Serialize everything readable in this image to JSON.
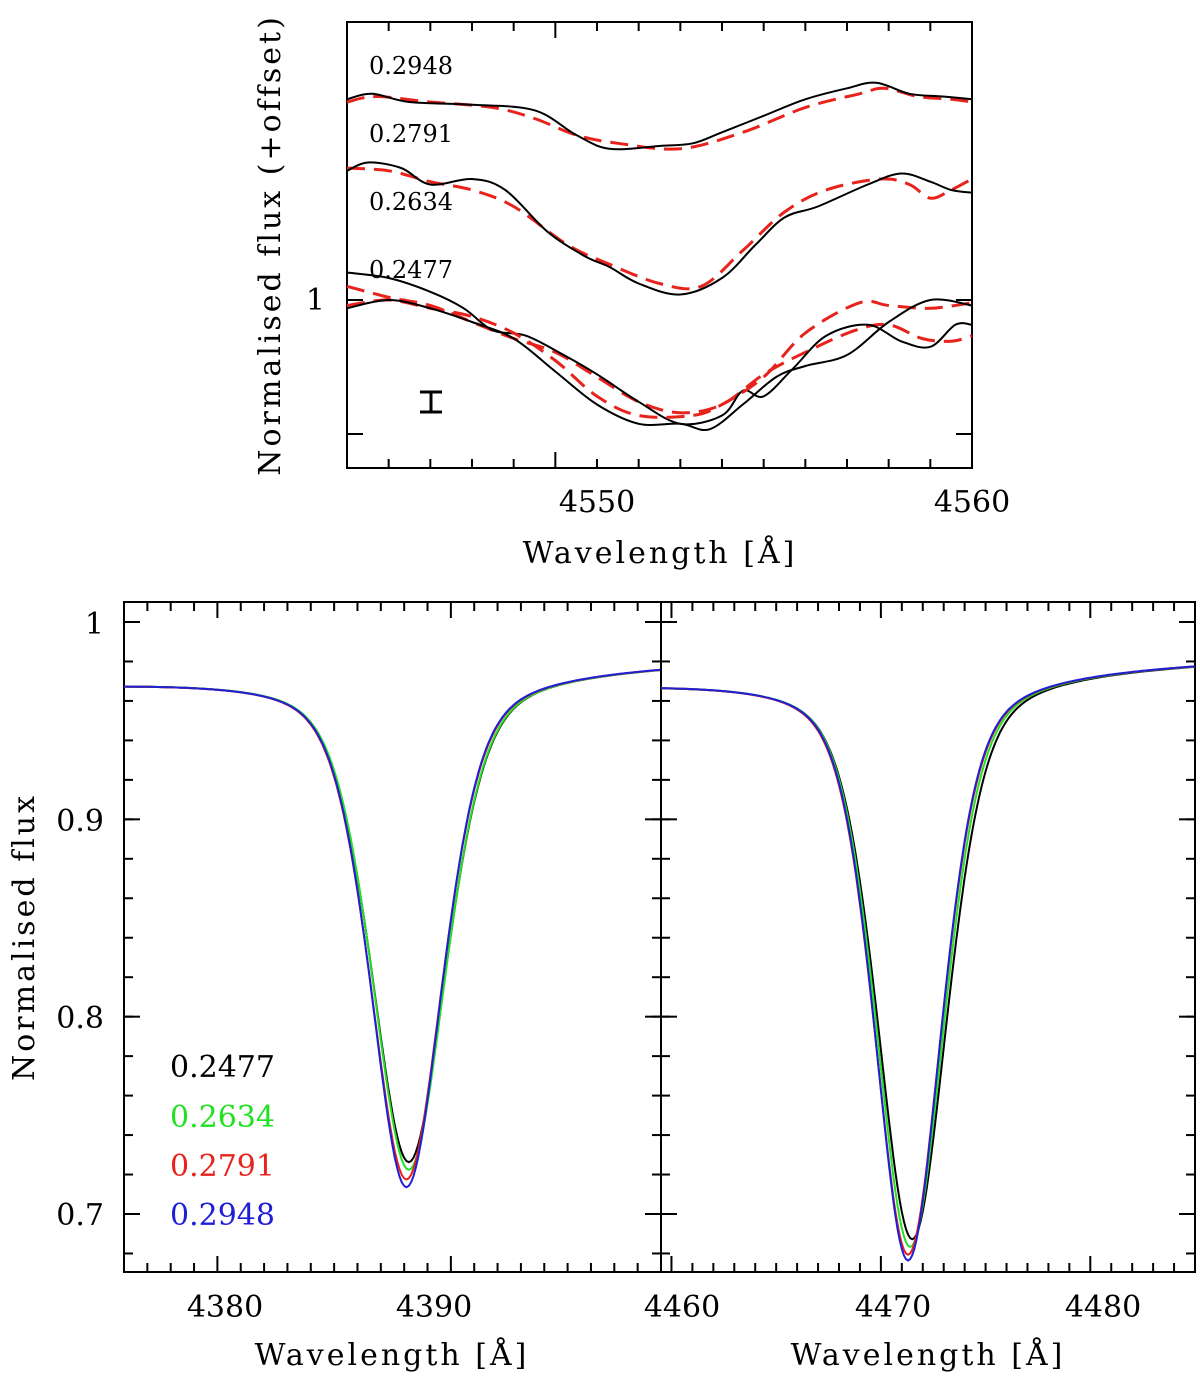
{
  "chart_data": [
    {
      "type": "line",
      "panel": "top",
      "xlabel": "Wavelength [Å]",
      "ylabel": "Normalised flux (+offset)",
      "xlim": [
        4545,
        4560
      ],
      "x_ticks": [
        "4550",
        "4560"
      ],
      "y_ticks": [
        "1"
      ],
      "error_bar_shown": true,
      "colors": {
        "observed": "#000000",
        "model": "#e8231c"
      },
      "line_styles": {
        "observed": "solid",
        "model": "dashed"
      },
      "series": [
        {
          "label": "0.2948",
          "offset": 0.75,
          "observed": [
            [
              4545,
              0.98
            ],
            [
              4545.6,
              1.0
            ],
            [
              4546.5,
              0.97
            ],
            [
              4548,
              0.96
            ],
            [
              4549.5,
              0.94
            ],
            [
              4550.5,
              0.85
            ],
            [
              4551.3,
              0.8
            ],
            [
              4552.5,
              0.81
            ],
            [
              4553.3,
              0.82
            ],
            [
              4554,
              0.86
            ],
            [
              4555,
              0.92
            ],
            [
              4556,
              0.98
            ],
            [
              4557,
              1.02
            ],
            [
              4557.7,
              1.04
            ],
            [
              4558.5,
              1.0
            ],
            [
              4559.3,
              0.99
            ],
            [
              4560,
              0.98
            ]
          ],
          "model": [
            [
              4545,
              0.97
            ],
            [
              4545.7,
              0.99
            ],
            [
              4547,
              0.97
            ],
            [
              4548.5,
              0.95
            ],
            [
              4549.5,
              0.91
            ],
            [
              4550.5,
              0.85
            ],
            [
              4551.5,
              0.82
            ],
            [
              4553,
              0.8
            ],
            [
              4554.5,
              0.86
            ],
            [
              4556,
              0.95
            ],
            [
              4557.3,
              1.0
            ],
            [
              4557.9,
              1.02
            ],
            [
              4558.7,
              0.99
            ],
            [
              4559.5,
              0.98
            ],
            [
              4560,
              0.97
            ]
          ]
        },
        {
          "label": "0.2791",
          "offset": 0.5,
          "observed": [
            [
              4545,
              0.97
            ],
            [
              4545.5,
              1.0
            ],
            [
              4546.3,
              0.98
            ],
            [
              4547,
              0.92
            ],
            [
              4548,
              0.94
            ],
            [
              4548.8,
              0.9
            ],
            [
              4549.8,
              0.75
            ],
            [
              4550.7,
              0.66
            ],
            [
              4551.3,
              0.62
            ],
            [
              4552,
              0.56
            ],
            [
              4553,
              0.52
            ],
            [
              4554,
              0.58
            ],
            [
              4554.8,
              0.7
            ],
            [
              4555.5,
              0.8
            ],
            [
              4556.3,
              0.84
            ],
            [
              4557.5,
              0.92
            ],
            [
              4558.3,
              0.96
            ],
            [
              4559,
              0.93
            ],
            [
              4559.5,
              0.9
            ],
            [
              4560,
              0.89
            ]
          ],
          "model": [
            [
              4545,
              0.98
            ],
            [
              4546,
              0.97
            ],
            [
              4547,
              0.93
            ],
            [
              4548,
              0.9
            ],
            [
              4549,
              0.84
            ],
            [
              4550.3,
              0.7
            ],
            [
              4551.3,
              0.63
            ],
            [
              4552.5,
              0.56
            ],
            [
              4553.5,
              0.55
            ],
            [
              4554.5,
              0.68
            ],
            [
              4555.5,
              0.82
            ],
            [
              4556.5,
              0.9
            ],
            [
              4557.8,
              0.94
            ],
            [
              4558.5,
              0.92
            ],
            [
              4559,
              0.87
            ],
            [
              4559.5,
              0.9
            ],
            [
              4560,
              0.94
            ]
          ]
        },
        {
          "label": "0.2634",
          "offset": 0.25,
          "observed": [
            [
              4545,
              0.85
            ],
            [
              4546,
              0.83
            ],
            [
              4547,
              0.78
            ],
            [
              4547.8,
              0.72
            ],
            [
              4548.5,
              0.64
            ],
            [
              4549.3,
              0.62
            ],
            [
              4550.2,
              0.55
            ],
            [
              4551,
              0.48
            ],
            [
              4552,
              0.38
            ],
            [
              4553,
              0.3
            ],
            [
              4554,
              0.33
            ],
            [
              4554.5,
              0.42
            ],
            [
              4555,
              0.4
            ],
            [
              4555.7,
              0.5
            ],
            [
              4556.5,
              0.62
            ],
            [
              4557.5,
              0.66
            ],
            [
              4558.3,
              0.6
            ],
            [
              4559,
              0.58
            ],
            [
              4559.6,
              0.66
            ],
            [
              4560,
              0.66
            ]
          ],
          "model": [
            [
              4545,
              0.8
            ],
            [
              4546,
              0.76
            ],
            [
              4547,
              0.73
            ],
            [
              4548,
              0.67
            ],
            [
              4549,
              0.61
            ],
            [
              4550,
              0.56
            ],
            [
              4551,
              0.47
            ],
            [
              4552,
              0.38
            ],
            [
              4553,
              0.34
            ],
            [
              4554,
              0.37
            ],
            [
              4555,
              0.48
            ],
            [
              4556,
              0.56
            ],
            [
              4557.2,
              0.64
            ],
            [
              4558,
              0.66
            ],
            [
              4558.8,
              0.61
            ],
            [
              4559.5,
              0.6
            ],
            [
              4560,
              0.62
            ]
          ]
        },
        {
          "label": "0.2477",
          "offset": 0.0,
          "observed": [
            [
              4545,
              0.97
            ],
            [
              4546,
              1.0
            ],
            [
              4547,
              0.97
            ],
            [
              4548,
              0.92
            ],
            [
              4549,
              0.86
            ],
            [
              4550,
              0.74
            ],
            [
              4551,
              0.62
            ],
            [
              4552,
              0.55
            ],
            [
              4553,
              0.55
            ],
            [
              4553.7,
              0.53
            ],
            [
              4554.5,
              0.62
            ],
            [
              4555.3,
              0.72
            ],
            [
              4556,
              0.76
            ],
            [
              4557,
              0.8
            ],
            [
              4558,
              0.92
            ],
            [
              4559,
              1.0
            ],
            [
              4560,
              0.98
            ]
          ],
          "model": [
            [
              4545,
              0.98
            ],
            [
              4546,
              1.0
            ],
            [
              4547,
              0.97
            ],
            [
              4548,
              0.94
            ],
            [
              4549,
              0.88
            ],
            [
              4550,
              0.78
            ],
            [
              4551,
              0.65
            ],
            [
              4552,
              0.58
            ],
            [
              4553.3,
              0.58
            ],
            [
              4554,
              0.62
            ],
            [
              4555,
              0.72
            ],
            [
              4556,
              0.88
            ],
            [
              4557.3,
              0.99
            ],
            [
              4558,
              0.98
            ],
            [
              4559,
              0.97
            ],
            [
              4560,
              0.99
            ]
          ]
        }
      ]
    },
    {
      "type": "line",
      "panel": "bottom-left",
      "xlabel": "Wavelength [Å]",
      "ylabel": "Normalised flux",
      "xlim": [
        4376,
        4399
      ],
      "ylim": [
        0.67,
        1.01
      ],
      "x_ticks": [
        "4380",
        "4390"
      ],
      "y_ticks": [
        "0.7",
        "0.8",
        "0.9",
        "1"
      ],
      "legend_placement": "lower-left",
      "series": [
        {
          "name": "0.2477",
          "color": "#000000",
          "depth": 0.745,
          "center": 4388.2,
          "sigma": 1.62
        },
        {
          "name": "0.2634",
          "color": "#22e022",
          "depth": 0.741,
          "center": 4388.2,
          "sigma": 1.6
        },
        {
          "name": "0.2791",
          "color": "#e8231c",
          "depth": 0.736,
          "center": 4388.1,
          "sigma": 1.58
        },
        {
          "name": "0.2948",
          "color": "#1f1fd6",
          "depth": 0.732,
          "center": 4388.1,
          "sigma": 1.56
        }
      ]
    },
    {
      "type": "line",
      "panel": "bottom-right",
      "xlabel": "Wavelength [Å]",
      "ylabel": "",
      "xlim": [
        4459.5,
        4485
      ],
      "ylim": [
        0.67,
        1.01
      ],
      "x_ticks": [
        "4460",
        "4470",
        "4480"
      ],
      "y_ticks": [],
      "series": [
        {
          "name": "0.2477",
          "color": "#000000",
          "depth": 0.705,
          "center": 4471.5,
          "sigma": 1.7
        },
        {
          "name": "0.2634",
          "color": "#22e022",
          "depth": 0.701,
          "center": 4471.4,
          "sigma": 1.66
        },
        {
          "name": "0.2791",
          "color": "#e8231c",
          "depth": 0.697,
          "center": 4471.3,
          "sigma": 1.64
        },
        {
          "name": "0.2948",
          "color": "#1f1fd6",
          "depth": 0.694,
          "center": 4471.3,
          "sigma": 1.62
        }
      ]
    }
  ]
}
